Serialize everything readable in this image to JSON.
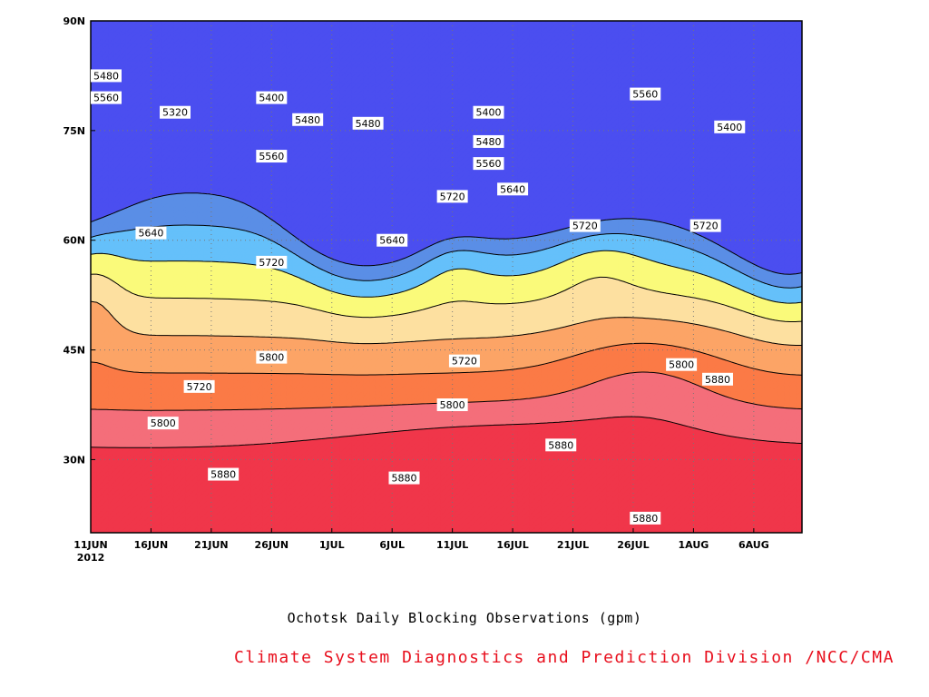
{
  "chart_data": {
    "type": "heatmap",
    "title": "Ochotsk Daily Blocking Observations (gpm)",
    "credit": "Climate System Diagnostics and Prediction Division /NCC/CMA",
    "x_ticks": [
      "11JUN",
      "16JUN",
      "21JUN",
      "26JUN",
      "1JUL",
      "6JUL",
      "11JUL",
      "16JUL",
      "21JUL",
      "26JUL",
      "1AUG",
      "6AUG"
    ],
    "x_year": "2012",
    "y_ticks": [
      "30N",
      "45N",
      "60N",
      "75N",
      "90N"
    ],
    "xlim": [
      "2012-06-11",
      "2012-08-09"
    ],
    "ylim": [
      20,
      90
    ],
    "grid": true,
    "levels": [
      5320,
      5400,
      5480,
      5560,
      5640,
      5720,
      5800,
      5880
    ],
    "colors": [
      "#4b4ef0",
      "#5a8ee6",
      "#65c0fa",
      "#fafa7a",
      "#fde0a0",
      "#fca466",
      "#fb7a46",
      "#f46e7a",
      "#f0364a"
    ],
    "contour_labels": [
      {
        "text": "5480",
        "date": "2012-06-11",
        "lat": 82.5
      },
      {
        "text": "5560",
        "date": "2012-06-11",
        "lat": 79.5
      },
      {
        "text": "5320",
        "date": "2012-06-18",
        "lat": 77.5
      },
      {
        "text": "5400",
        "date": "2012-06-26",
        "lat": 79.5
      },
      {
        "text": "5480",
        "date": "2012-06-29",
        "lat": 76.5
      },
      {
        "text": "5480",
        "date": "2012-07-04",
        "lat": 76
      },
      {
        "text": "5560",
        "date": "2012-06-26",
        "lat": 71.5
      },
      {
        "text": "5640",
        "date": "2012-06-16",
        "lat": 61
      },
      {
        "text": "5640",
        "date": "2012-07-06",
        "lat": 60
      },
      {
        "text": "5720",
        "date": "2012-06-26",
        "lat": 57
      },
      {
        "text": "5720",
        "date": "2012-07-11",
        "lat": 66
      },
      {
        "text": "5400",
        "date": "2012-07-14",
        "lat": 77.5
      },
      {
        "text": "5480",
        "date": "2012-07-14",
        "lat": 73.5
      },
      {
        "text": "5560",
        "date": "2012-07-14",
        "lat": 70.5
      },
      {
        "text": "5640",
        "date": "2012-07-16",
        "lat": 67
      },
      {
        "text": "5560",
        "date": "2012-07-27",
        "lat": 80
      },
      {
        "text": "5400",
        "date": "2012-08-03",
        "lat": 75.5
      },
      {
        "text": "5720",
        "date": "2012-07-22",
        "lat": 62
      },
      {
        "text": "5720",
        "date": "2012-08-01",
        "lat": 62
      },
      {
        "text": "5720",
        "date": "2012-06-20",
        "lat": 40
      },
      {
        "text": "5800",
        "date": "2012-06-26",
        "lat": 44
      },
      {
        "text": "5720",
        "date": "2012-07-12",
        "lat": 43.5
      },
      {
        "text": "5800",
        "date": "2012-07-30",
        "lat": 43
      },
      {
        "text": "5800",
        "date": "2012-06-17",
        "lat": 35
      },
      {
        "text": "5800",
        "date": "2012-07-11",
        "lat": 37.5
      },
      {
        "text": "5880",
        "date": "2012-08-02",
        "lat": 41
      },
      {
        "text": "5880",
        "date": "2012-07-20",
        "lat": 32
      },
      {
        "text": "5880",
        "date": "2012-06-22",
        "lat": 28
      },
      {
        "text": "5880",
        "date": "2012-07-07",
        "lat": 27.5
      },
      {
        "text": "5880",
        "date": "2012-07-27",
        "lat": 22
      }
    ]
  }
}
